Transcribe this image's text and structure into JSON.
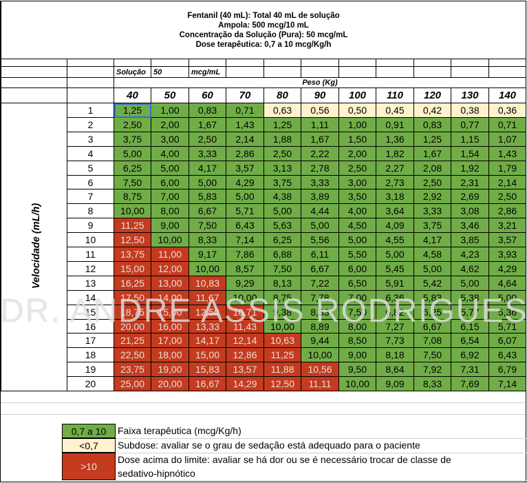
{
  "header": {
    "line1": "Fentanil (40 mL): Total 40 mL de solução",
    "line2": "Ampola: 500 mcg/10 mL",
    "line3": "Concentração da Solução (Pura): 50 mcg/mL",
    "line4": "Dose terapêutica: 0,7 a 10 mcg/Kg/h"
  },
  "solution_row": {
    "label": "Solução",
    "value": "50",
    "unit": "mcg/mL"
  },
  "weight_header": "Peso (Kg)",
  "velocity_label": "Velocidade (mL/h)",
  "weights": [
    "40",
    "50",
    "60",
    "70",
    "80",
    "90",
    "100",
    "110",
    "120",
    "130",
    "140"
  ],
  "rows": [
    {
      "speed": "1",
      "values": [
        "1,25",
        "1,00",
        "0,83",
        "0,71",
        "0,63",
        "0,56",
        "0,50",
        "0,45",
        "0,42",
        "0,38",
        "0,36"
      ],
      "status": [
        "g",
        "g",
        "g",
        "g",
        "y",
        "y",
        "y",
        "y",
        "y",
        "y",
        "y"
      ]
    },
    {
      "speed": "2",
      "values": [
        "2,50",
        "2,00",
        "1,67",
        "1,43",
        "1,25",
        "1,11",
        "1,00",
        "0,91",
        "0,83",
        "0,77",
        "0,71"
      ],
      "status": [
        "g",
        "g",
        "g",
        "g",
        "g",
        "g",
        "g",
        "g",
        "g",
        "g",
        "g"
      ]
    },
    {
      "speed": "3",
      "values": [
        "3,75",
        "3,00",
        "2,50",
        "2,14",
        "1,88",
        "1,67",
        "1,50",
        "1,36",
        "1,25",
        "1,15",
        "1,07"
      ],
      "status": [
        "g",
        "g",
        "g",
        "g",
        "g",
        "g",
        "g",
        "g",
        "g",
        "g",
        "g"
      ]
    },
    {
      "speed": "4",
      "values": [
        "5,00",
        "4,00",
        "3,33",
        "2,86",
        "2,50",
        "2,22",
        "2,00",
        "1,82",
        "1,67",
        "1,54",
        "1,43"
      ],
      "status": [
        "g",
        "g",
        "g",
        "g",
        "g",
        "g",
        "g",
        "g",
        "g",
        "g",
        "g"
      ]
    },
    {
      "speed": "5",
      "values": [
        "6,25",
        "5,00",
        "4,17",
        "3,57",
        "3,13",
        "2,78",
        "2,50",
        "2,27",
        "2,08",
        "1,92",
        "1,79"
      ],
      "status": [
        "g",
        "g",
        "g",
        "g",
        "g",
        "g",
        "g",
        "g",
        "g",
        "g",
        "g"
      ]
    },
    {
      "speed": "6",
      "values": [
        "7,50",
        "6,00",
        "5,00",
        "4,29",
        "3,75",
        "3,33",
        "3,00",
        "2,73",
        "2,50",
        "2,31",
        "2,14"
      ],
      "status": [
        "g",
        "g",
        "g",
        "g",
        "g",
        "g",
        "g",
        "g",
        "g",
        "g",
        "g"
      ]
    },
    {
      "speed": "7",
      "values": [
        "8,75",
        "7,00",
        "5,83",
        "5,00",
        "4,38",
        "3,89",
        "3,50",
        "3,18",
        "2,92",
        "2,69",
        "2,50"
      ],
      "status": [
        "g",
        "g",
        "g",
        "g",
        "g",
        "g",
        "g",
        "g",
        "g",
        "g",
        "g"
      ]
    },
    {
      "speed": "8",
      "values": [
        "10,00",
        "8,00",
        "6,67",
        "5,71",
        "5,00",
        "4,44",
        "4,00",
        "3,64",
        "3,33",
        "3,08",
        "2,86"
      ],
      "status": [
        "g",
        "g",
        "g",
        "g",
        "g",
        "g",
        "g",
        "g",
        "g",
        "g",
        "g"
      ]
    },
    {
      "speed": "9",
      "values": [
        "11,25",
        "9,00",
        "7,50",
        "6,43",
        "5,63",
        "5,00",
        "4,50",
        "4,09",
        "3,75",
        "3,46",
        "3,21"
      ],
      "status": [
        "r",
        "g",
        "g",
        "g",
        "g",
        "g",
        "g",
        "g",
        "g",
        "g",
        "g"
      ]
    },
    {
      "speed": "10",
      "values": [
        "12,50",
        "10,00",
        "8,33",
        "7,14",
        "6,25",
        "5,56",
        "5,00",
        "4,55",
        "4,17",
        "3,85",
        "3,57"
      ],
      "status": [
        "r",
        "g",
        "g",
        "g",
        "g",
        "g",
        "g",
        "g",
        "g",
        "g",
        "g"
      ]
    },
    {
      "speed": "11",
      "values": [
        "13,75",
        "11,00",
        "9,17",
        "7,86",
        "6,88",
        "6,11",
        "5,50",
        "5,00",
        "4,58",
        "4,23",
        "3,93"
      ],
      "status": [
        "r",
        "r",
        "g",
        "g",
        "g",
        "g",
        "g",
        "g",
        "g",
        "g",
        "g"
      ]
    },
    {
      "speed": "12",
      "values": [
        "15,00",
        "12,00",
        "10,00",
        "8,57",
        "7,50",
        "6,67",
        "6,00",
        "5,45",
        "5,00",
        "4,62",
        "4,29"
      ],
      "status": [
        "r",
        "r",
        "g",
        "g",
        "g",
        "g",
        "g",
        "g",
        "g",
        "g",
        "g"
      ]
    },
    {
      "speed": "13",
      "values": [
        "16,25",
        "13,00",
        "10,83",
        "9,29",
        "8,13",
        "7,22",
        "6,50",
        "5,91",
        "5,42",
        "5,00",
        "4,64"
      ],
      "status": [
        "r",
        "r",
        "r",
        "g",
        "g",
        "g",
        "g",
        "g",
        "g",
        "g",
        "g"
      ]
    },
    {
      "speed": "14",
      "values": [
        "17,50",
        "14,00",
        "11,67",
        "10,00",
        "8,75",
        "7,78",
        "7,00",
        "6,36",
        "5,83",
        "5,38",
        "5,00"
      ],
      "status": [
        "r",
        "r",
        "r",
        "g",
        "g",
        "g",
        "g",
        "g",
        "g",
        "g",
        "g"
      ]
    },
    {
      "speed": "15",
      "values": [
        "18,75",
        "15,00",
        "12,50",
        "10,71",
        "9,38",
        "8,33",
        "7,50",
        "6,82",
        "6,25",
        "5,77",
        "5,36"
      ],
      "status": [
        "r",
        "r",
        "r",
        "r",
        "g",
        "g",
        "g",
        "g",
        "g",
        "g",
        "g"
      ]
    },
    {
      "speed": "16",
      "values": [
        "20,00",
        "16,00",
        "13,33",
        "11,43",
        "10,00",
        "8,89",
        "8,00",
        "7,27",
        "6,67",
        "6,15",
        "5,71"
      ],
      "status": [
        "r",
        "r",
        "r",
        "r",
        "g",
        "g",
        "g",
        "g",
        "g",
        "g",
        "g"
      ]
    },
    {
      "speed": "17",
      "values": [
        "21,25",
        "17,00",
        "14,17",
        "12,14",
        "10,63",
        "9,44",
        "8,50",
        "7,73",
        "7,08",
        "6,54",
        "6,07"
      ],
      "status": [
        "r",
        "r",
        "r",
        "r",
        "r",
        "g",
        "g",
        "g",
        "g",
        "g",
        "g"
      ]
    },
    {
      "speed": "18",
      "values": [
        "22,50",
        "18,00",
        "15,00",
        "12,86",
        "11,25",
        "10,00",
        "9,00",
        "8,18",
        "7,50",
        "6,92",
        "6,43"
      ],
      "status": [
        "r",
        "r",
        "r",
        "r",
        "r",
        "g",
        "g",
        "g",
        "g",
        "g",
        "g"
      ]
    },
    {
      "speed": "19",
      "values": [
        "23,75",
        "19,00",
        "15,83",
        "13,57",
        "11,88",
        "10,56",
        "9,50",
        "8,64",
        "7,92",
        "7,31",
        "6,79"
      ],
      "status": [
        "r",
        "r",
        "r",
        "r",
        "r",
        "r",
        "g",
        "g",
        "g",
        "g",
        "g"
      ]
    },
    {
      "speed": "20",
      "values": [
        "25,00",
        "20,00",
        "16,67",
        "14,29",
        "12,50",
        "11,11",
        "10,00",
        "9,09",
        "8,33",
        "7,69",
        "7,14"
      ],
      "status": [
        "r",
        "r",
        "r",
        "r",
        "r",
        "r",
        "g",
        "g",
        "g",
        "g",
        "g"
      ]
    }
  ],
  "legend": [
    {
      "swatch": "0,7 a 10",
      "text": "Faixa terapêutica (mcg/Kg/h)",
      "color": "#70ad47"
    },
    {
      "swatch": "<0,7",
      "text": "Subdose: avaliar se o grau de sedação está adequado para o paciente",
      "color": "#fff2cc"
    },
    {
      "swatch": ">10",
      "text": "Dose acima do limite: avaliar se há dor ou se é necessário trocar de classe de",
      "text2": "sedativo-hipnótico",
      "color": "#c43b1f"
    }
  ],
  "watermark": "DR. ANDRE ASSIS RODRIGUES",
  "colors": {
    "green": "#70ad47",
    "yellow": "#fff2cc",
    "red": "#c43b1f"
  }
}
